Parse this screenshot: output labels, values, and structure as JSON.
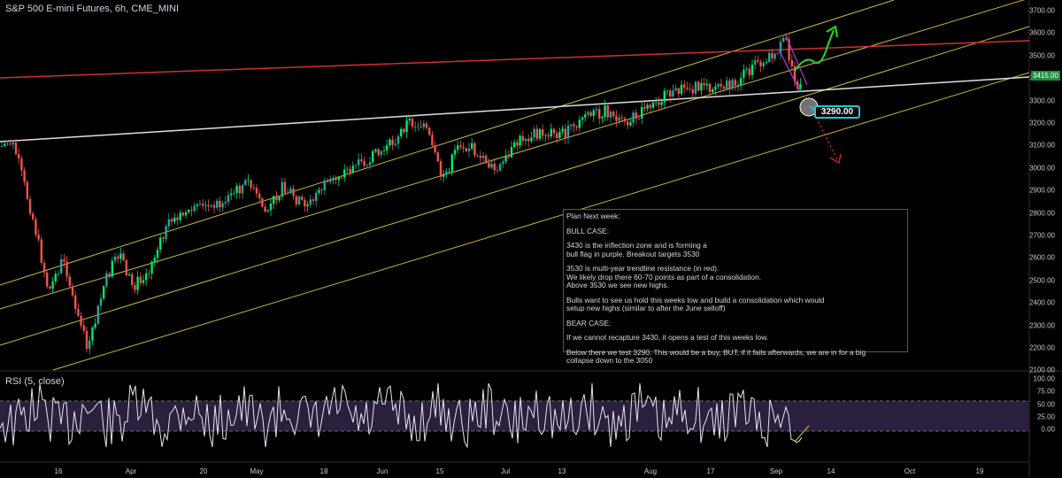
{
  "header": {
    "title": "S&P 500 E-mini Futures, 6h, CME_MINI"
  },
  "rsi": {
    "title": "RSI (5, close)",
    "axis_labels": [
      "100.00",
      "75.00",
      "50.00",
      "25.00",
      "0.00"
    ],
    "band_color": "#2a1f3d",
    "line_color": "#e8e3f0"
  },
  "price_axis": {
    "labels": [
      "3700.00",
      "3600.00",
      "3500.00",
      "3400.00",
      "3300.00",
      "3200.00",
      "3100.00",
      "3000.00",
      "2900.00",
      "2800.00",
      "2700.00",
      "2600.00",
      "2500.00",
      "2400.00",
      "2300.00",
      "2200.00",
      "2100.00"
    ],
    "current_price": "3415.00",
    "current_price_color": "#1e8e3e"
  },
  "time_axis": {
    "labels": [
      "16",
      "Apr",
      "20",
      "May",
      "18",
      "Jun",
      "15",
      "Jul",
      "13",
      "Aug",
      "17",
      "Sep",
      "14",
      "Oct",
      "19"
    ]
  },
  "callout": {
    "label": "3290.00",
    "border_color": "#26c6da"
  },
  "note": {
    "paragraphs": [
      "Plan Next week:",
      "BULL CASE:",
      "3430 is the inflection zone and is forming a\nbull flag in purple. Breakout targets 3530",
      "3530 is multi-year trendline resistance (in red).\nWe likely drop there 60-70 points as part of a consolidation.\nAbove 3530 we see new highs.",
      "Bulls want to see us hold this weeks low and build a consolidation which would\nsetup new highs (similar to after the June selloff)",
      "BEAR CASE:",
      "If we cannot recapture 3430, it opens a test of this weeks low.",
      "Below there we test 3290. This would be a buy, BUT, if it fails afterwards, we are in for a big\ncollapse down to the 3050"
    ]
  },
  "colors": {
    "up_candle": "#26a69a",
    "up_candle_bright": "#00e676",
    "down_candle": "#ef5350",
    "channel": "#c9b93a",
    "resistance": "#d32f2f",
    "support": "#e0e0e0",
    "flag": "#b03ad8",
    "bull_arrow": "#22dd22",
    "bear_arrow": "#d32f2f"
  }
}
